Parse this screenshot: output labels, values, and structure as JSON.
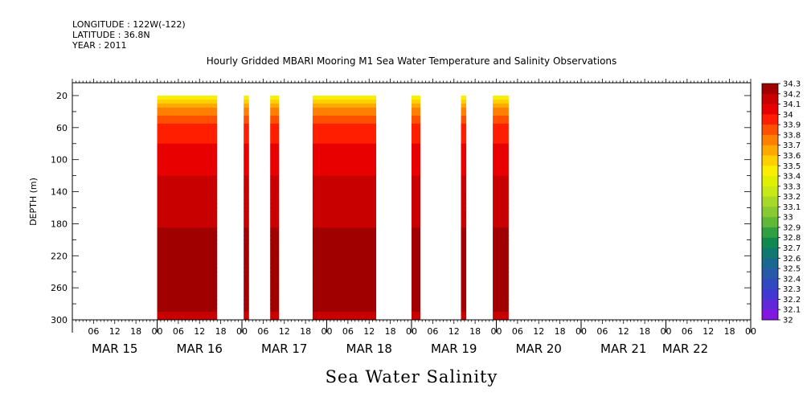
{
  "header": {
    "longitude": "LONGITUDE : 122W(-122)",
    "latitude": "LATITUDE : 36.8N",
    "year": "YEAR : 2011"
  },
  "chart_data": {
    "type": "heatmap",
    "title": "Hourly Gridded MBARI Mooring M1 Sea Water Temperature and Salinity Observations",
    "variable_label": "Sea Water Salinity",
    "ylabel": "DEPTH (m)",
    "yticks": [
      20,
      60,
      100,
      140,
      180,
      220,
      260,
      300
    ],
    "ylim": [
      300,
      4
    ],
    "x_start_hour": 0,
    "x_end_hour": 192,
    "hour_ticks": [
      "06",
      "12",
      "18",
      "00",
      "06",
      "12",
      "18",
      "00",
      "06",
      "12",
      "18",
      "00",
      "06",
      "12",
      "18",
      "00",
      "06",
      "12",
      "18",
      "00",
      "06",
      "12",
      "18",
      "00",
      "06",
      "12",
      "18",
      "00",
      "06",
      "12",
      "18",
      "00"
    ],
    "day_labels": [
      "MAR 15",
      "MAR 16",
      "MAR 17",
      "MAR 18",
      "MAR 19",
      "MAR 20",
      "MAR 21",
      "MAR 22"
    ],
    "colorbar": {
      "levels": [
        "34.3",
        "34.2",
        "34.1",
        "34",
        "33.9",
        "33.8",
        "33.7",
        "33.6",
        "33.5",
        "33.4",
        "33.3",
        "33.2",
        "33.1",
        "33",
        "32.9",
        "32.8",
        "32.7",
        "32.6",
        "32.5",
        "32.4",
        "32.3",
        "32.2",
        "32.1",
        "32"
      ],
      "colors": [
        "#a00000",
        "#c80000",
        "#e80000",
        "#ff1e00",
        "#ff5000",
        "#ff8000",
        "#ffa800",
        "#ffd000",
        "#f8f000",
        "#e0f000",
        "#c8e818",
        "#a8d828",
        "#88c830",
        "#60b838",
        "#30a040",
        "#108850",
        "#107870",
        "#186890",
        "#2858a8",
        "#3048c0",
        "#4038d0",
        "#6028d8",
        "#8018e0",
        "#c010e8"
      ]
    },
    "data_segments": [
      {
        "start_hour": 24,
        "end_hour": 41
      },
      {
        "start_hour": 48.5,
        "end_hour": 50
      },
      {
        "start_hour": 56,
        "end_hour": 58.5
      },
      {
        "start_hour": 68,
        "end_hour": 86
      },
      {
        "start_hour": 96,
        "end_hour": 98.5
      },
      {
        "start_hour": 110,
        "end_hour": 111.5
      },
      {
        "start_hour": 119,
        "end_hour": 123.5
      }
    ],
    "salinity_profile": [
      {
        "depth": 20,
        "value": 33.4
      },
      {
        "depth": 30,
        "value": 33.6
      },
      {
        "depth": 40,
        "value": 33.75
      },
      {
        "depth": 50,
        "value": 33.85
      },
      {
        "depth": 65,
        "value": 33.95
      },
      {
        "depth": 100,
        "value": 34.05
      },
      {
        "depth": 140,
        "value": 34.15
      },
      {
        "depth": 230,
        "value": 34.25
      },
      {
        "depth": 280,
        "value": 34.25
      },
      {
        "depth": 300,
        "value": 34.15
      }
    ]
  }
}
